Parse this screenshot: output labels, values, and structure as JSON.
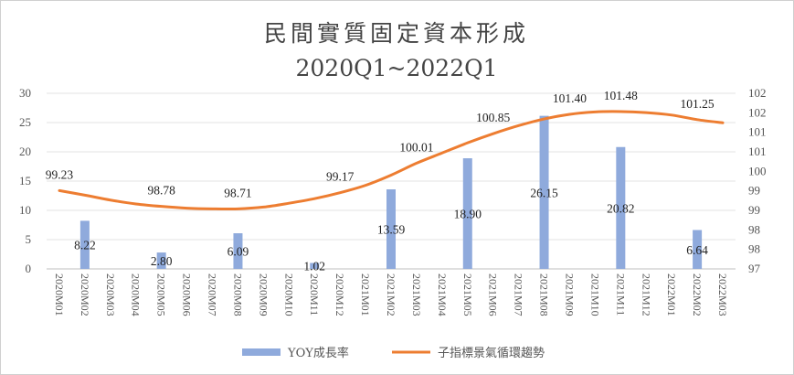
{
  "chart_data": {
    "type": "bar+line",
    "title_line1": "民間實質固定資本形成",
    "title_line2": "2020Q1~2022Q1",
    "categories": [
      "2020M01",
      "2020M02",
      "2020M03",
      "2020M04",
      "2020M05",
      "2020M06",
      "2020M07",
      "2020M08",
      "2020M09",
      "2020M10",
      "2020M11",
      "2020M12",
      "2021M01",
      "2021M02",
      "2021M03",
      "2021M04",
      "2021M05",
      "2021M06",
      "2021M07",
      "2021M08",
      "2021M09",
      "2021M10",
      "2021M11",
      "2021M12",
      "2022M01",
      "2022M02",
      "2022M03"
    ],
    "y_left": {
      "min": 0,
      "max": 30,
      "ticks": [
        "0",
        "5",
        "10",
        "15",
        "20",
        "25",
        "30"
      ]
    },
    "y_right": {
      "min": 97,
      "max": 102,
      "ticks": [
        "97",
        "98",
        "98",
        "99",
        "99",
        "100",
        "101",
        "101",
        "102",
        "102"
      ]
    },
    "series": [
      {
        "name": "YOY成長率",
        "type": "bar",
        "axis": "left",
        "color": "#8faadc",
        "values": [
          null,
          8.22,
          null,
          null,
          2.8,
          null,
          null,
          6.09,
          null,
          null,
          1.02,
          null,
          null,
          13.59,
          null,
          null,
          18.9,
          null,
          null,
          26.15,
          null,
          null,
          20.82,
          null,
          null,
          6.64,
          null
        ],
        "labels": [
          null,
          "8.22",
          null,
          null,
          "2.80",
          null,
          null,
          "6.09",
          null,
          null,
          "1.02",
          null,
          null,
          "13.59",
          null,
          null,
          "18.90",
          null,
          null,
          "26.15",
          null,
          null,
          "20.82",
          null,
          null,
          "6.64",
          null
        ]
      },
      {
        "name": "子指標景氣循環趨勢",
        "type": "line",
        "axis": "right",
        "color": "#ed7d31",
        "values": [
          99.23,
          99.1,
          98.96,
          98.85,
          98.78,
          98.73,
          98.71,
          98.71,
          98.76,
          98.87,
          99.0,
          99.17,
          99.38,
          99.67,
          100.01,
          100.3,
          100.59,
          100.85,
          101.08,
          101.27,
          101.4,
          101.47,
          101.48,
          101.45,
          101.38,
          101.25,
          101.16
        ],
        "labels": [
          "99.23",
          null,
          null,
          null,
          "98.78",
          null,
          null,
          "98.71",
          null,
          null,
          null,
          "99.17",
          null,
          null,
          "100.01",
          null,
          null,
          "100.85",
          null,
          null,
          "101.40",
          null,
          "101.48",
          null,
          null,
          "101.25",
          null
        ]
      }
    ],
    "legend_position": "bottom",
    "grid": "horizontal"
  }
}
